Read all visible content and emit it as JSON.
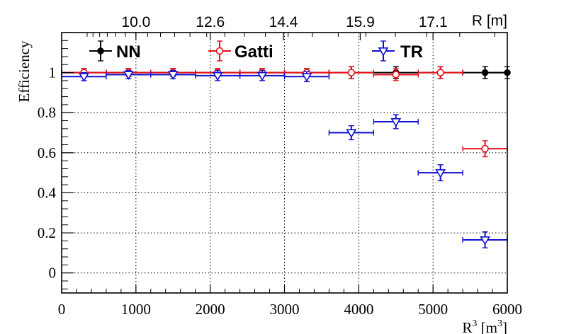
{
  "chart_data": {
    "type": "scatter",
    "xlabel": "R",
    "xlabel_unit": "[m",
    "xlabel_sup": "3",
    "xlabel_close": "]",
    "ylabel": "Efficiency",
    "top_axis_label": "R [m]",
    "xlim": [
      0,
      6000
    ],
    "ylim": [
      -0.1,
      1.2
    ],
    "x_ticks": [
      "0",
      "1000",
      "2000",
      "3000",
      "4000",
      "5000",
      "6000"
    ],
    "y_ticks": [
      "0",
      "0.2",
      "0.4",
      "0.6",
      "0.8",
      "1"
    ],
    "top_ticks": [
      "10.0",
      "12.6",
      "14.4",
      "15.9",
      "17.1"
    ],
    "grid": true,
    "legend_position": "top",
    "series": [
      {
        "name": "NN",
        "color": "#000000",
        "marker": "filled-circle",
        "points": [
          {
            "x": 300,
            "xerr": 300,
            "y": 1.0,
            "yerr": 0.02
          },
          {
            "x": 900,
            "xerr": 300,
            "y": 1.0,
            "yerr": 0.02
          },
          {
            "x": 1500,
            "xerr": 300,
            "y": 1.0,
            "yerr": 0.02
          },
          {
            "x": 2100,
            "xerr": 300,
            "y": 1.0,
            "yerr": 0.02
          },
          {
            "x": 2700,
            "xerr": 300,
            "y": 1.0,
            "yerr": 0.02
          },
          {
            "x": 3300,
            "xerr": 300,
            "y": 1.0,
            "yerr": 0.02
          },
          {
            "x": 3900,
            "xerr": 300,
            "y": 1.0,
            "yerr": 0.03
          },
          {
            "x": 4500,
            "xerr": 300,
            "y": 1.0,
            "yerr": 0.03
          },
          {
            "x": 5100,
            "xerr": 300,
            "y": 1.0,
            "yerr": 0.03
          },
          {
            "x": 5700,
            "xerr": 300,
            "y": 1.0,
            "yerr": 0.03
          },
          {
            "x": 6000,
            "xerr": 300,
            "y": 1.0,
            "yerr": 0.03
          }
        ]
      },
      {
        "name": "Gatti",
        "color": "#e8101a",
        "marker": "open-circle",
        "points": [
          {
            "x": 300,
            "xerr": 300,
            "y": 1.0,
            "yerr": 0.02
          },
          {
            "x": 900,
            "xerr": 300,
            "y": 1.0,
            "yerr": 0.02
          },
          {
            "x": 1500,
            "xerr": 300,
            "y": 1.0,
            "yerr": 0.02
          },
          {
            "x": 2100,
            "xerr": 300,
            "y": 1.0,
            "yerr": 0.02
          },
          {
            "x": 2700,
            "xerr": 300,
            "y": 1.0,
            "yerr": 0.02
          },
          {
            "x": 3300,
            "xerr": 300,
            "y": 1.0,
            "yerr": 0.02
          },
          {
            "x": 3900,
            "xerr": 300,
            "y": 1.0,
            "yerr": 0.03
          },
          {
            "x": 4500,
            "xerr": 300,
            "y": 0.99,
            "yerr": 0.03
          },
          {
            "x": 5100,
            "xerr": 300,
            "y": 1.0,
            "yerr": 0.03
          },
          {
            "x": 5700,
            "xerr": 300,
            "y": 0.62,
            "yerr": 0.04
          }
        ]
      },
      {
        "name": "TR",
        "color": "#1010d0",
        "marker": "open-triangle-down",
        "points": [
          {
            "x": 300,
            "xerr": 300,
            "y": 0.98,
            "yerr": 0.02
          },
          {
            "x": 900,
            "xerr": 300,
            "y": 0.99,
            "yerr": 0.02
          },
          {
            "x": 1500,
            "xerr": 300,
            "y": 0.99,
            "yerr": 0.02
          },
          {
            "x": 2100,
            "xerr": 300,
            "y": 0.985,
            "yerr": 0.025
          },
          {
            "x": 2700,
            "xerr": 300,
            "y": 0.985,
            "yerr": 0.025
          },
          {
            "x": 3300,
            "xerr": 300,
            "y": 0.98,
            "yerr": 0.025
          },
          {
            "x": 3900,
            "xerr": 300,
            "y": 0.7,
            "yerr": 0.035
          },
          {
            "x": 4500,
            "xerr": 300,
            "y": 0.755,
            "yerr": 0.035
          },
          {
            "x": 5100,
            "xerr": 300,
            "y": 0.5,
            "yerr": 0.04
          },
          {
            "x": 5700,
            "xerr": 300,
            "y": 0.165,
            "yerr": 0.04
          }
        ]
      }
    ]
  }
}
